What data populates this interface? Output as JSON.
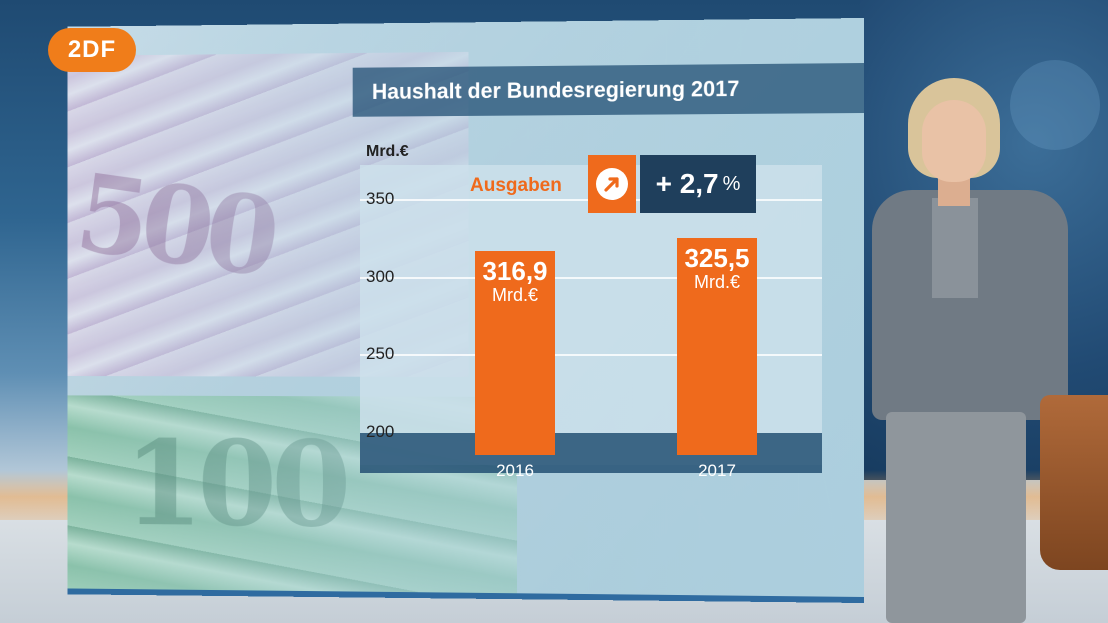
{
  "logo": "2DF",
  "title": "Haushalt der Bundesregierung 2017",
  "series_label": "Ausgaben",
  "change": {
    "value": "+ 2,7",
    "unit": "%"
  },
  "colors": {
    "bar": "#ef6a1c",
    "title_bar": "#285578",
    "change_box": "#1f3f5c"
  },
  "chart_data": {
    "type": "bar",
    "title": "Haushalt der Bundesregierung 2017",
    "ylabel": "Mrd.€",
    "xlabel": "",
    "ylim": [
      200,
      350
    ],
    "yticks": [
      "200",
      "250",
      "300",
      "350"
    ],
    "categories": [
      "2016",
      "2017"
    ],
    "values": [
      316.9,
      325.5
    ],
    "value_labels": [
      "316,9",
      "325,5"
    ],
    "value_unit": "Mrd.€",
    "series": [
      {
        "name": "Ausgaben",
        "values": [
          316.9,
          325.5
        ]
      }
    ]
  }
}
